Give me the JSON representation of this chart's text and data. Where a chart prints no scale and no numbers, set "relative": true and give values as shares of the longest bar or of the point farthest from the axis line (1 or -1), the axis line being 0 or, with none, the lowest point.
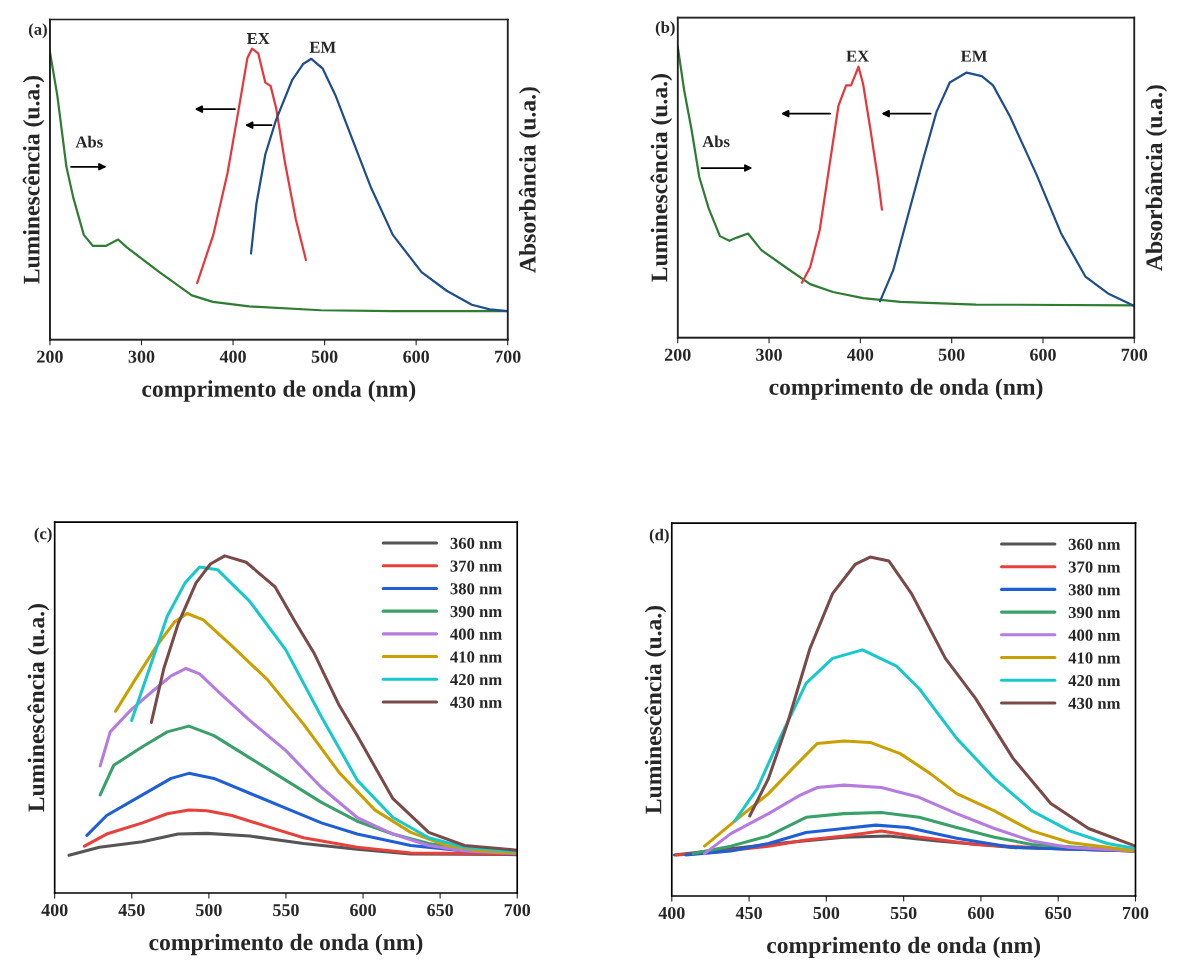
{
  "chart_data": [
    {
      "type": "line",
      "title": "(a)",
      "xlabel": "comprimento de onda (nm)",
      "ylabel": "Luminescência (u.a.)",
      "y2label": "Absorbância (u.a.)",
      "relative": true,
      "xlim": [
        200,
        700
      ],
      "xticks": [
        200,
        300,
        400,
        500,
        600,
        700
      ],
      "legend": false,
      "series": [
        {
          "name": "Abs",
          "color": "#2e7d32",
          "x": [
            200,
            208,
            218,
            225.5,
            237,
            247,
            261,
            274.5,
            284,
            319.6,
            355,
            378,
            417.6,
            496,
            574.5,
            700
          ],
          "values": [
            0.989,
            0.84,
            0.594,
            0.488,
            0.36,
            0.322,
            0.322,
            0.344,
            0.317,
            0.232,
            0.152,
            0.13,
            0.114,
            0.101,
            0.098,
            0.098
          ]
        },
        {
          "name": "EX",
          "color": "#e8373c",
          "x": [
            360.8,
            378.4,
            394,
            405.9,
            415.7,
            420.8,
            427.5,
            435.3,
            441,
            447,
            456.9,
            468.6,
            479.6
          ],
          "values": [
            0.194,
            0.36,
            0.573,
            0.787,
            0.968,
            1.0,
            0.984,
            0.883,
            0.872,
            0.797,
            0.605,
            0.413,
            0.274
          ]
        },
        {
          "name": "EM",
          "color": "#1f4e8c",
          "x": [
            419.6,
            425.5,
            435.3,
            447,
            464.7,
            476.5,
            485.5,
            498,
            511.8,
            535.3,
            551,
            574.5,
            605.9,
            633.3,
            660.8,
            680.4,
            700
          ],
          "values": [
            0.296,
            0.466,
            0.637,
            0.755,
            0.893,
            0.947,
            0.965,
            0.931,
            0.84,
            0.648,
            0.52,
            0.36,
            0.232,
            0.168,
            0.12,
            0.104,
            0.098
          ]
        }
      ]
    },
    {
      "type": "line",
      "title": "(b)",
      "xlabel": "comprimento de onda (nm)",
      "ylabel": "Luminescência (u.a.)",
      "y2label": "Absorbância (u.a.)",
      "relative": true,
      "xlim": [
        200,
        700
      ],
      "xticks": [
        200,
        300,
        400,
        500,
        600,
        700
      ],
      "legend": false,
      "series": [
        {
          "name": "Abs",
          "color": "#2e7d32",
          "x": [
            200,
            207,
            215.3,
            223.6,
            233.8,
            246.2,
            256.5,
            264.8,
            277,
            291.6,
            320.5,
            345,
            370,
            403,
            444,
            526.7,
            700
          ],
          "values": [
            1.0,
            0.851,
            0.712,
            0.552,
            0.445,
            0.349,
            0.333,
            0.344,
            0.358,
            0.301,
            0.237,
            0.184,
            0.157,
            0.136,
            0.123,
            0.114,
            0.111
          ]
        },
        {
          "name": "EX",
          "color": "#e8373c",
          "x": [
            336,
            345,
            355.5,
            365.8,
            376,
            384.4,
            389.8,
            398,
            403,
            411.2,
            419.5,
            423.6
          ],
          "values": [
            0.189,
            0.242,
            0.37,
            0.584,
            0.797,
            0.867,
            0.867,
            0.931,
            0.872,
            0.712,
            0.541,
            0.44
          ]
        },
        {
          "name": "EM",
          "color": "#1f4e8c",
          "x": [
            421.5,
            436,
            452.5,
            469,
            483.4,
            497.9,
            516.4,
            533,
            545.3,
            563.9,
            592.7,
            619.6,
            646.4,
            671.2,
            700
          ],
          "values": [
            0.125,
            0.232,
            0.424,
            0.616,
            0.776,
            0.877,
            0.911,
            0.899,
            0.867,
            0.76,
            0.562,
            0.36,
            0.21,
            0.152,
            0.109
          ]
        }
      ]
    },
    {
      "type": "line",
      "title": "(c)",
      "xlabel": "comprimento de onda (nm)",
      "ylabel": "Luminescência (u.a.)",
      "relative": true,
      "xlim": [
        400,
        700
      ],
      "xticks": [
        400,
        450,
        500,
        550,
        600,
        650,
        700
      ],
      "legend": "top right",
      "series": [
        {
          "name": "360 nm",
          "color": "#555555",
          "x": [
            409.3,
            429,
            456.9,
            480,
            498.7,
            526.5,
            561.4,
            596.2,
            631,
            700
          ],
          "values": [
            0.112,
            0.136,
            0.152,
            0.175,
            0.177,
            0.169,
            0.147,
            0.13,
            0.116,
            0.114
          ]
        },
        {
          "name": "370 nm",
          "color": "#e8413c",
          "x": [
            419.3,
            433.7,
            456.9,
            473,
            487,
            498.7,
            515,
            538,
            561.4,
            596.2,
            631,
            700
          ],
          "values": [
            0.139,
            0.175,
            0.208,
            0.235,
            0.246,
            0.244,
            0.23,
            0.197,
            0.164,
            0.136,
            0.119,
            0.116
          ]
        },
        {
          "name": "380 nm",
          "color": "#1f5fd6",
          "x": [
            420.9,
            433.7,
            456.9,
            475.5,
            487,
            503.3,
            526.5,
            549.8,
            573,
            596.2,
            631,
            665.8,
            700
          ],
          "values": [
            0.171,
            0.23,
            0.291,
            0.34,
            0.355,
            0.34,
            0.296,
            0.252,
            0.208,
            0.175,
            0.141,
            0.125,
            0.119
          ]
        },
        {
          "name": "390 nm",
          "color": "#3aa06a",
          "x": [
            429.5,
            438.3,
            456.9,
            473,
            487,
            503.3,
            526.5,
            549.8,
            573,
            596.2,
            619.4,
            642.6,
            665.8,
            700
          ],
          "values": [
            0.291,
            0.379,
            0.434,
            0.478,
            0.495,
            0.467,
            0.401,
            0.335,
            0.269,
            0.213,
            0.175,
            0.147,
            0.13,
            0.119
          ]
        },
        {
          "name": "400 nm",
          "color": "#b57be0",
          "x": [
            429.5,
            436,
            449.9,
            463.8,
            475.5,
            485.2,
            494,
            508,
            526.5,
            549.8,
            573,
            596.2,
            619.4,
            642.6,
            665.8,
            700
          ],
          "values": [
            0.377,
            0.478,
            0.545,
            0.6,
            0.644,
            0.666,
            0.65,
            0.589,
            0.512,
            0.423,
            0.313,
            0.224,
            0.175,
            0.141,
            0.125,
            0.117
          ]
        },
        {
          "name": "410 nm",
          "color": "#c9a000",
          "x": [
            439.5,
            452.2,
            466.2,
            477.8,
            485.9,
            496.4,
            514.9,
            538,
            561.4,
            584.6,
            607.8,
            631,
            654.2,
            677.4,
            700
          ],
          "values": [
            0.539,
            0.633,
            0.733,
            0.804,
            0.829,
            0.81,
            0.733,
            0.633,
            0.501,
            0.357,
            0.246,
            0.18,
            0.141,
            0.125,
            0.119
          ]
        },
        {
          "name": "420 nm",
          "color": "#19c8cc",
          "x": [
            449.9,
            461.5,
            473,
            484.6,
            494,
            505.6,
            526.5,
            549.8,
            573,
            596.2,
            619.4,
            642.6,
            665.8,
            700
          ],
          "values": [
            0.512,
            0.666,
            0.821,
            0.92,
            0.967,
            0.959,
            0.865,
            0.722,
            0.523,
            0.335,
            0.224,
            0.164,
            0.136,
            0.123
          ]
        },
        {
          "name": "430 nm",
          "color": "#7a4a48",
          "x": [
            462.7,
            470.8,
            480.1,
            491.7,
            501,
            510.3,
            524.2,
            542.8,
            556.7,
            568.3,
            584.6,
            596.2,
            619.4,
            642.6,
            665.8,
            700
          ],
          "values": [
            0.506,
            0.666,
            0.799,
            0.92,
            0.976,
            1.0,
            0.981,
            0.909,
            0.799,
            0.711,
            0.556,
            0.467,
            0.28,
            0.18,
            0.141,
            0.127
          ]
        }
      ]
    },
    {
      "type": "line",
      "title": "(d)",
      "xlabel": "comprimento de onda (nm)",
      "ylabel": "Luminescência (u.a.)",
      "relative": true,
      "xlim": [
        400,
        700
      ],
      "xticks": [
        400,
        450,
        500,
        550,
        600,
        650,
        700
      ],
      "legend": "top right",
      "series": [
        {
          "name": "360 nm",
          "color": "#555555",
          "x": [
            401.7,
            426,
            474.8,
            511.3,
            540.5,
            572.1,
            620.8,
            700
          ],
          "values": [
            0.121,
            0.133,
            0.158,
            0.173,
            0.177,
            0.162,
            0.143,
            0.133
          ]
        },
        {
          "name": "370 nm",
          "color": "#e8413c",
          "x": [
            403,
            426,
            462.6,
            486.9,
            511.3,
            535.6,
            560,
            596.5,
            645.2,
            700
          ],
          "values": [
            0.121,
            0.128,
            0.147,
            0.165,
            0.177,
            0.192,
            0.174,
            0.152,
            0.14,
            0.133
          ]
        },
        {
          "name": "380 nm",
          "color": "#1f5fd6",
          "x": [
            409,
            438.2,
            462.6,
            486.9,
            511.3,
            532,
            552.7,
            584.3,
            620.8,
            700
          ],
          "values": [
            0.121,
            0.133,
            0.155,
            0.187,
            0.199,
            0.209,
            0.202,
            0.17,
            0.143,
            0.133
          ]
        },
        {
          "name": "390 nm",
          "color": "#3aa06a",
          "x": [
            413.9,
            438.2,
            462.6,
            486.9,
            511.3,
            535.6,
            560,
            584.3,
            608.7,
            633,
            700
          ],
          "values": [
            0.125,
            0.147,
            0.177,
            0.232,
            0.243,
            0.246,
            0.232,
            0.202,
            0.173,
            0.152,
            0.133
          ]
        },
        {
          "name": "400 nm",
          "color": "#b57be0",
          "x": [
            421.2,
            438.2,
            462.6,
            482.1,
            494.2,
            511.3,
            535.6,
            560,
            584.3,
            608.7,
            633,
            657.4,
            700
          ],
          "values": [
            0.125,
            0.184,
            0.243,
            0.295,
            0.32,
            0.327,
            0.32,
            0.291,
            0.243,
            0.199,
            0.162,
            0.143,
            0.133
          ]
        },
        {
          "name": "410 nm",
          "color": "#c9a000",
          "x": [
            421.2,
            440.7,
            462.6,
            479.6,
            494.2,
            511.3,
            528.3,
            547.8,
            567.3,
            584.3,
            608.7,
            633,
            657.4,
            700
          ],
          "values": [
            0.147,
            0.221,
            0.302,
            0.383,
            0.45,
            0.457,
            0.453,
            0.42,
            0.361,
            0.302,
            0.251,
            0.192,
            0.158,
            0.133
          ]
        },
        {
          "name": "420 nm",
          "color": "#19c8cc",
          "x": [
            440.7,
            455.3,
            469.9,
            486.9,
            504,
            523.4,
            545.4,
            560,
            584.3,
            608.7,
            633,
            657.4,
            681.8,
            700
          ],
          "values": [
            0.221,
            0.317,
            0.465,
            0.627,
            0.701,
            0.726,
            0.678,
            0.612,
            0.465,
            0.347,
            0.251,
            0.192,
            0.155,
            0.14
          ]
        },
        {
          "name": "430 nm",
          "color": "#7a4a48",
          "x": [
            450.4,
            462.6,
            474.8,
            489.4,
            504,
            518.6,
            528.3,
            540.5,
            555.1,
            577,
            596.5,
            620.8,
            645.2,
            669.6,
            700
          ],
          "values": [
            0.236,
            0.347,
            0.509,
            0.73,
            0.892,
            0.978,
            1.0,
            0.988,
            0.892,
            0.701,
            0.583,
            0.406,
            0.273,
            0.199,
            0.147
          ]
        }
      ]
    }
  ]
}
